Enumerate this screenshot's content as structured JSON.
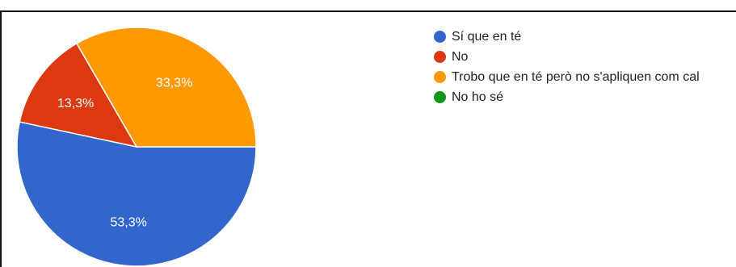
{
  "chart_data": {
    "type": "pie",
    "slices": [
      {
        "label": "Sí que en té",
        "value": 53.3,
        "display": "53,3%",
        "color": "#3366cc"
      },
      {
        "label": "No",
        "value": 13.3,
        "display": "13,3%",
        "color": "#dc3912"
      },
      {
        "label": "Trobo que en té però no s'apliquen com cal",
        "value": 33.3,
        "display": "33,3%",
        "color": "#ff9900"
      },
      {
        "label": "No ho sé",
        "value": 0,
        "display": "",
        "color": "#109618"
      }
    ],
    "legend_position": "right"
  }
}
